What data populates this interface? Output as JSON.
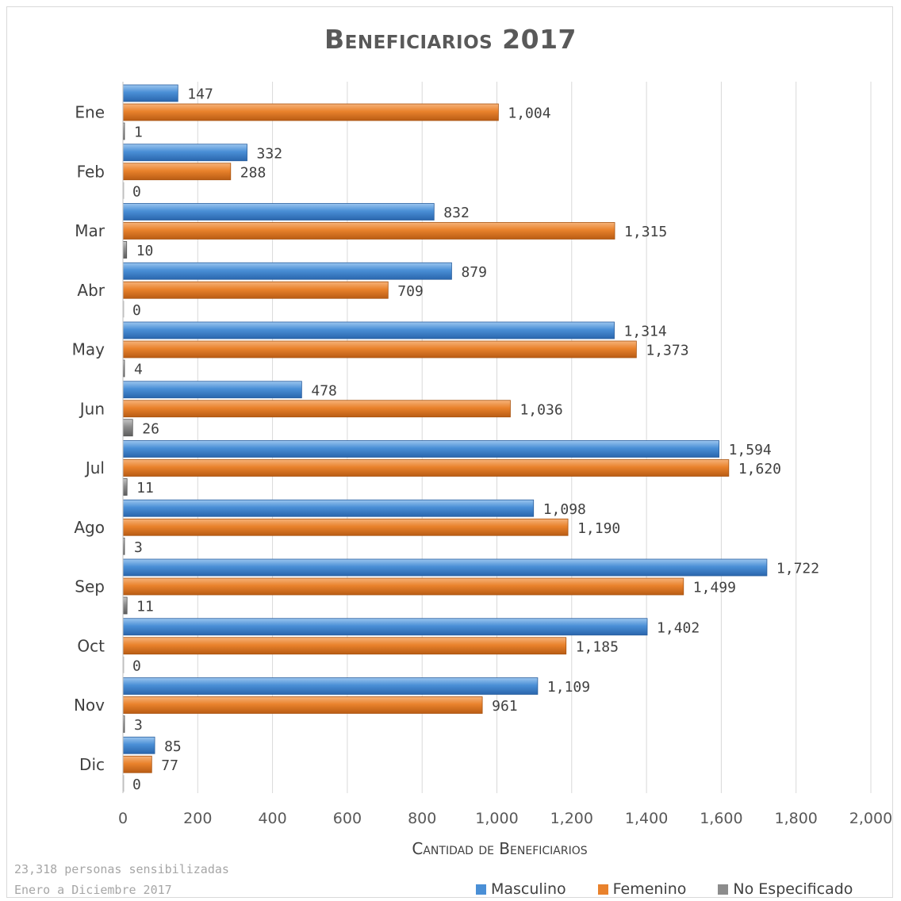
{
  "title": "Beneficiarios 2017",
  "chart_data": {
    "type": "bar",
    "orientation": "horizontal",
    "title": "Beneficiarios 2017",
    "xlabel": "Cantidad de Beneficiarios",
    "ylabel": "",
    "xlim": [
      0,
      2000
    ],
    "xticks": [
      0,
      200,
      400,
      600,
      800,
      1000,
      1200,
      1400,
      1600,
      1800,
      2000
    ],
    "xtick_labels": [
      "0",
      "200",
      "400",
      "600",
      "800",
      "1,000",
      "1,200",
      "1,400",
      "1,600",
      "1,800",
      "2,000"
    ],
    "categories": [
      "Ene",
      "Feb",
      "Mar",
      "Abr",
      "May",
      "Jun",
      "Jul",
      "Ago",
      "Sep",
      "Oct",
      "Nov",
      "Dic"
    ],
    "series": [
      {
        "name": "Masculino",
        "color": "#4a8fd6",
        "values": [
          147,
          332,
          832,
          879,
          1314,
          478,
          1594,
          1098,
          1722,
          1402,
          1109,
          85
        ],
        "labels": [
          "147",
          "332",
          "832",
          "879",
          "1,314",
          "478",
          "1,594",
          "1,098",
          "1,722",
          "1,402",
          "1,109",
          "85"
        ]
      },
      {
        "name": "Femenino",
        "color": "#e9822c",
        "values": [
          1004,
          288,
          1315,
          709,
          1373,
          1036,
          1620,
          1190,
          1499,
          1185,
          961,
          77
        ],
        "labels": [
          "1,004",
          "288",
          "1,315",
          "709",
          "1,373",
          "1,036",
          "1,620",
          "1,190",
          "1,499",
          "1,185",
          "961",
          "77"
        ]
      },
      {
        "name": "No Especificado",
        "color": "#8c8c8c",
        "values": [
          1,
          0,
          10,
          0,
          4,
          26,
          11,
          3,
          11,
          0,
          3,
          0
        ],
        "labels": [
          "1",
          "0",
          "10",
          "0",
          "4",
          "26",
          "11",
          "3",
          "11",
          "0",
          "3",
          "0"
        ]
      }
    ],
    "grid": true,
    "legend_position": "bottom-right"
  },
  "notes": {
    "line1": "23,318 personas sensibilizadas",
    "line2": "Enero a Diciembre 2017"
  },
  "legend": {
    "masculino": "Masculino",
    "femenino": "Femenino",
    "no_especificado": "No Especificado"
  }
}
